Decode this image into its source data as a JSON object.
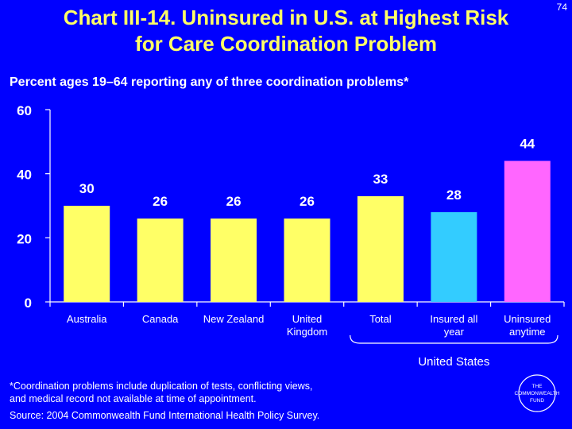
{
  "slide_number": "74",
  "title_line1": "Chart III-14. Uninsured in U.S. at Highest Risk",
  "title_line2": "for Care Coordination Problem",
  "subtitle": "Percent ages 19–64 reporting any of three coordination problems*",
  "colors": {
    "background": "#0000ff",
    "title": "#ffff66",
    "bar_yellow": "#ffff66",
    "bar_blue": "#33ccff",
    "bar_pink": "#ff66ff",
    "axis": "#ffffff"
  },
  "chart_data": {
    "type": "bar",
    "title": "Percent ages 19–64 reporting any of three coordination problems*",
    "xlabel": "",
    "ylabel": "",
    "ylim": [
      0,
      60
    ],
    "yticks": [
      "0",
      "20",
      "40",
      "60"
    ],
    "categories": [
      "Australia",
      "Canada",
      "New Zealand",
      "United Kingdom",
      "Total",
      "Insured all year",
      "Uninsured anytime"
    ],
    "category_lines": [
      [
        "Australia"
      ],
      [
        "Canada"
      ],
      [
        "New Zealand"
      ],
      [
        "United",
        "Kingdom"
      ],
      [
        "Total"
      ],
      [
        "Insured all",
        "year"
      ],
      [
        "Uninsured",
        "anytime"
      ]
    ],
    "values": [
      30,
      26,
      26,
      26,
      33,
      28,
      44
    ],
    "value_labels": [
      "30",
      "26",
      "26",
      "26",
      "33",
      "28",
      "44"
    ],
    "bar_colors": [
      "#ffff66",
      "#ffff66",
      "#ffff66",
      "#ffff66",
      "#ffff66",
      "#33ccff",
      "#ff66ff"
    ],
    "group_label": "United States",
    "grid": false
  },
  "footnote_line1": "*Coordination problems include duplication of tests, conflicting views,",
  "footnote_line2": "and medical record not available at time of appointment.",
  "source": "Source: 2004 Commonwealth Fund International Health Policy Survey.",
  "logo_lines": [
    "THE",
    "COMMONWEALTH",
    "FUND"
  ]
}
